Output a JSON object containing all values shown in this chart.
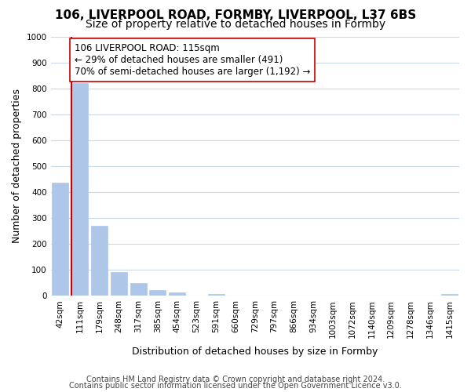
{
  "title1": "106, LIVERPOOL ROAD, FORMBY, LIVERPOOL, L37 6BS",
  "title2": "Size of property relative to detached houses in Formby",
  "xlabel": "Distribution of detached houses by size in Formby",
  "ylabel": "Number of detached properties",
  "bin_labels": [
    "42sqm",
    "111sqm",
    "179sqm",
    "248sqm",
    "317sqm",
    "385sqm",
    "454sqm",
    "523sqm",
    "591sqm",
    "660sqm",
    "729sqm",
    "797sqm",
    "866sqm",
    "934sqm",
    "1003sqm",
    "1072sqm",
    "1140sqm",
    "1209sqm",
    "1278sqm",
    "1346sqm",
    "1415sqm"
  ],
  "bar_values": [
    435,
    820,
    270,
    93,
    48,
    22,
    13,
    0,
    8,
    0,
    0,
    0,
    0,
    0,
    0,
    0,
    0,
    0,
    0,
    0,
    7
  ],
  "bar_color": "#aec6e8",
  "bar_edge_color": "#aec6e8",
  "vline_color": "#cc0000",
  "vline_pos": 0.575,
  "annotation_text": "106 LIVERPOOL ROAD: 115sqm\n← 29% of detached houses are smaller (491)\n70% of semi-detached houses are larger (1,192) →",
  "annotation_box_color": "#ffffff",
  "annotation_box_edge": "#cc0000",
  "ylim": [
    0,
    1000
  ],
  "yticks": [
    0,
    100,
    200,
    300,
    400,
    500,
    600,
    700,
    800,
    900,
    1000
  ],
  "footer1": "Contains HM Land Registry data © Crown copyright and database right 2024.",
  "footer2": "Contains public sector information licensed under the Open Government Licence v3.0.",
  "bg_color": "#ffffff",
  "grid_color": "#c8d8e8",
  "title_fontsize": 11,
  "subtitle_fontsize": 10,
  "axis_label_fontsize": 9,
  "tick_fontsize": 7.5,
  "annotation_fontsize": 8.5,
  "footer_fontsize": 7
}
